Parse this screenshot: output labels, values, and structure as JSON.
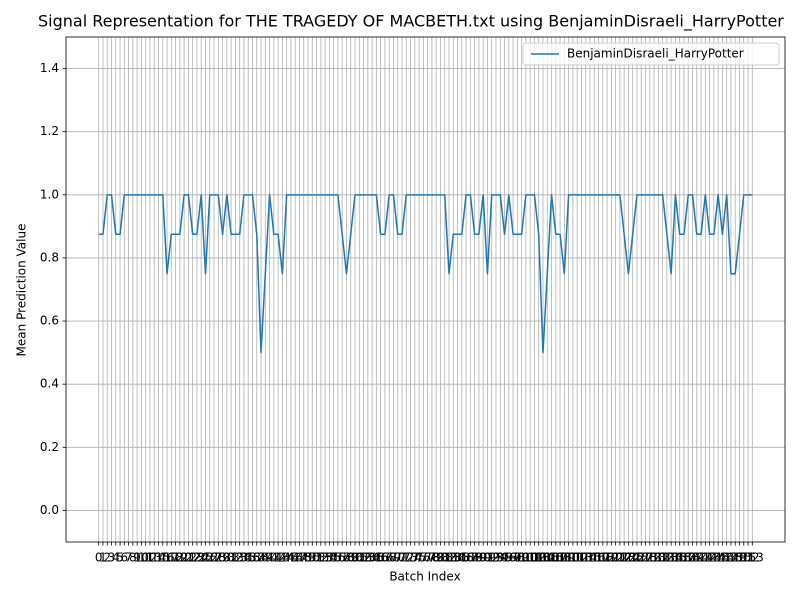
{
  "chart_data": {
    "type": "line",
    "title": "Signal Representation for THE TRAGEDY OF MACBETH.txt using BenjaminDisraeli_HarryPotter",
    "xlabel": "Batch Index",
    "ylabel": "Mean Prediction Value",
    "x": [
      0,
      1,
      2,
      3,
      4,
      5,
      6,
      7,
      8,
      9,
      10,
      11,
      12,
      13,
      14,
      15,
      16,
      17,
      18,
      19,
      20,
      21,
      22,
      23,
      24,
      25,
      26,
      27,
      28,
      29,
      30,
      31,
      32,
      33,
      34,
      35,
      36,
      37,
      38,
      39,
      40,
      41,
      42,
      43,
      44,
      45,
      46,
      47,
      48,
      49,
      50,
      51,
      52,
      53,
      54,
      55,
      56,
      57,
      58,
      59,
      60,
      61,
      62,
      63,
      64,
      65,
      66,
      67,
      68,
      69,
      70,
      71,
      72,
      73,
      74,
      75,
      76,
      77,
      78,
      79,
      80,
      81,
      82,
      83,
      84,
      85,
      86,
      87,
      88,
      89,
      90,
      91,
      92,
      93,
      94,
      95,
      96,
      97,
      98,
      99,
      100,
      101,
      102,
      103,
      104,
      105,
      106,
      107,
      108,
      109,
      110,
      111,
      112,
      113,
      114,
      115,
      116,
      117,
      118,
      119,
      120,
      121,
      122,
      123,
      124,
      125,
      126,
      127,
      128,
      129,
      130,
      131,
      132,
      133,
      134,
      135,
      136,
      137,
      138,
      139,
      140,
      141,
      142,
      143,
      144,
      145,
      146,
      147,
      148,
      149,
      150,
      151,
      152,
      153
    ],
    "series": [
      {
        "name": "BenjaminDisraeli_HarryPotter",
        "color": "#1f77b4",
        "values": [
          0.875,
          0.875,
          1,
          1,
          0.875,
          0.875,
          1,
          1,
          1,
          1,
          1,
          1,
          1,
          1,
          1,
          1,
          0.75,
          0.875,
          0.875,
          0.875,
          1,
          1,
          0.875,
          0.875,
          1,
          0.75,
          1,
          1,
          1,
          0.875,
          1,
          0.875,
          0.875,
          0.875,
          1,
          1,
          1,
          0.875,
          0.5,
          0.75,
          1,
          0.875,
          0.875,
          0.75,
          1,
          1,
          1,
          1,
          1,
          1,
          1,
          1,
          1,
          1,
          1,
          1,
          1,
          0.875,
          0.75,
          0.875,
          1,
          1,
          1,
          1,
          1,
          1,
          0.875,
          0.875,
          1,
          1,
          0.875,
          0.875,
          1,
          1,
          1,
          1,
          1,
          1,
          1,
          1,
          1,
          1,
          0.75,
          0.875,
          0.875,
          0.875,
          1,
          1,
          0.875,
          0.875,
          1,
          0.75,
          1,
          1,
          1,
          0.875,
          1,
          0.875,
          0.875,
          0.875,
          1,
          1,
          1,
          0.875,
          0.5,
          0.75,
          1,
          0.875,
          0.875,
          0.75,
          1,
          1,
          1,
          1,
          1,
          1,
          1,
          1,
          1,
          1,
          1,
          1,
          1,
          0.875,
          0.75,
          0.875,
          1,
          1,
          1,
          1,
          1,
          1,
          1,
          0.875,
          0.75,
          1,
          0.875,
          0.875,
          1,
          1,
          0.875,
          0.875,
          1,
          0.875,
          0.875,
          1,
          0.875,
          1,
          0.75,
          0.75,
          0.875,
          1,
          1,
          1
        ]
      }
    ],
    "xlim": [
      -7.65,
      160.65
    ],
    "xticks": [
      0,
      1,
      2,
      3,
      4,
      5,
      6,
      7,
      8,
      9,
      10,
      11,
      12,
      13,
      14,
      15,
      16,
      17,
      18,
      19,
      20,
      21,
      22,
      23,
      24,
      25,
      26,
      27,
      28,
      29,
      30,
      31,
      32,
      33,
      34,
      35,
      36,
      37,
      38,
      39,
      40,
      41,
      42,
      43,
      44,
      45,
      46,
      47,
      48,
      49,
      50,
      51,
      52,
      53,
      54,
      55,
      56,
      57,
      58,
      59,
      60,
      61,
      62,
      63,
      64,
      65,
      66,
      67,
      68,
      69,
      70,
      71,
      72,
      73,
      74,
      75,
      76,
      77,
      78,
      79,
      80,
      81,
      82,
      83,
      84,
      85,
      86,
      87,
      88,
      89,
      90,
      91,
      92,
      93,
      94,
      95,
      96,
      97,
      98,
      99,
      100,
      101,
      102,
      103,
      104,
      105,
      106,
      107,
      108,
      109,
      110,
      111,
      112,
      113,
      114,
      115,
      116,
      117,
      118,
      119,
      120,
      121,
      122,
      123,
      124,
      125,
      126,
      127,
      128,
      129,
      130,
      131,
      132,
      133,
      134,
      135,
      136,
      137,
      138,
      139,
      140,
      141,
      142,
      143,
      144,
      145,
      146,
      147,
      148,
      149,
      150,
      151,
      152,
      153
    ],
    "ylim": [
      -0.1,
      1.5
    ],
    "yticks": [
      {
        "value": 0,
        "label": "0.0"
      },
      0.2,
      0.4,
      0.6,
      0.8,
      {
        "value": 1,
        "label": "1.0"
      },
      1.2,
      1.4
    ],
    "grid": true,
    "legend": "upper right"
  }
}
